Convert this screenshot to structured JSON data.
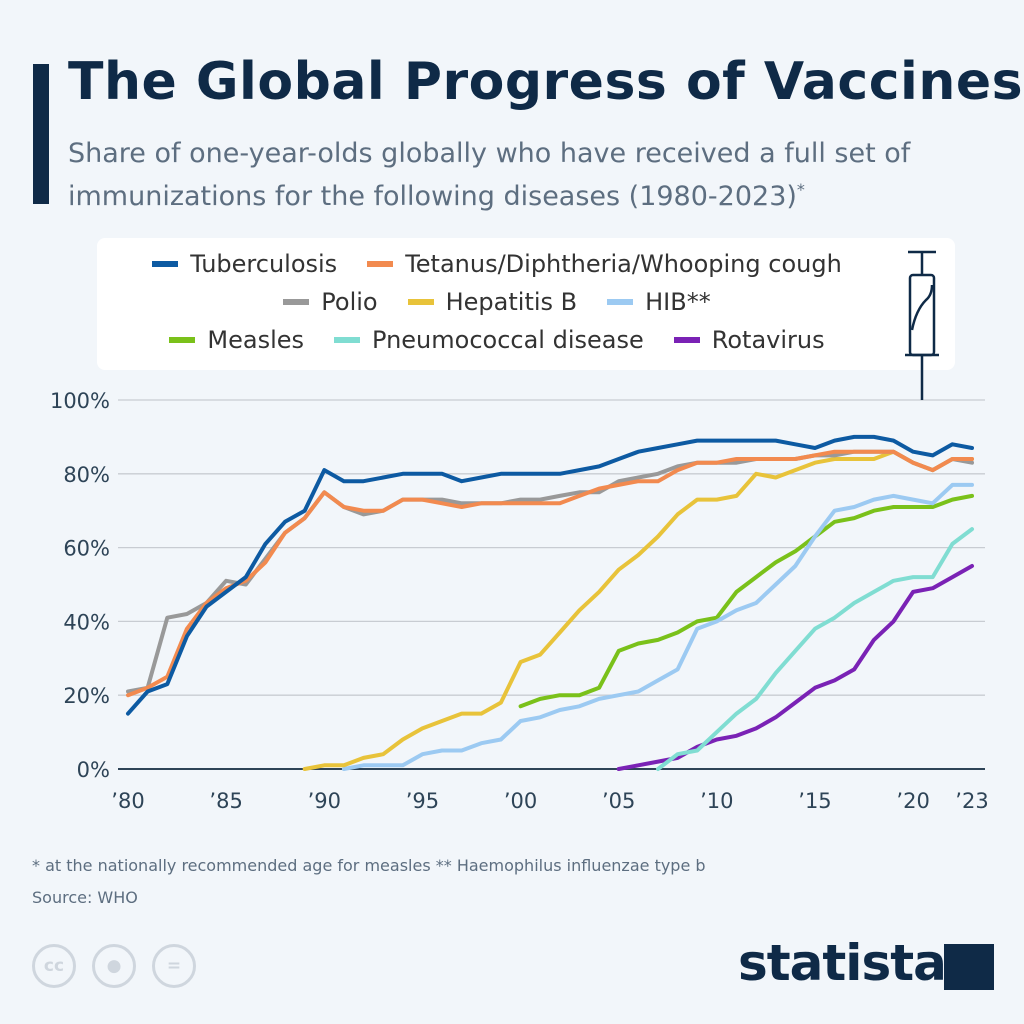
{
  "title": "The Global Progress of Vaccines",
  "subtitle": "Share of one-year-olds globally who have received a full set of immunizations for the following diseases (1980-2023)",
  "subtitle_mark": "*",
  "footnote": "* at the nationally recommended age for measles     ** Haemophilus influenzae type b",
  "source": "Source: WHO",
  "logo": "statista",
  "icons": [
    "syringe-icon",
    "cc-icon",
    "attribution-icon",
    "no-derivatives-icon",
    "statista-logo-icon"
  ],
  "chart_data": {
    "type": "line",
    "title": "The Global Progress of Vaccines",
    "xlabel": "",
    "ylabel": "",
    "xlim": [
      1980,
      2023
    ],
    "ylim": [
      0,
      100
    ],
    "grid": true,
    "legend": "top",
    "x_ticks": [
      1980,
      1985,
      1990,
      1995,
      2000,
      2005,
      2010,
      2015,
      2020,
      2023
    ],
    "x_tick_labels": [
      "’80",
      "’85",
      "’90",
      "’95",
      "’00",
      "’05",
      "’10",
      "’15",
      "’20",
      "’23"
    ],
    "y_ticks": [
      0,
      20,
      40,
      60,
      80,
      100
    ],
    "y_tick_labels": [
      "0%",
      "20%",
      "40%",
      "60%",
      "80%",
      "100%"
    ],
    "series": [
      {
        "name": "Tuberculosis",
        "color": "#0d5aa2",
        "start": 1980,
        "values": [
          15,
          21,
          23,
          36,
          44,
          48,
          52,
          61,
          67,
          70,
          81,
          78,
          78,
          79,
          80,
          80,
          80,
          78,
          79,
          80,
          80,
          80,
          80,
          81,
          82,
          84,
          86,
          87,
          88,
          89,
          89,
          89,
          89,
          89,
          88,
          87,
          89,
          90,
          90,
          89,
          86,
          85,
          88,
          87
        ]
      },
      {
        "name": "Tetanus/Diphtheria/Whooping cough",
        "color": "#f28a4f",
        "start": 1980,
        "values": [
          20,
          22,
          25,
          38,
          45,
          49,
          51,
          56,
          64,
          68,
          75,
          71,
          70,
          70,
          73,
          73,
          72,
          71,
          72,
          72,
          72,
          72,
          72,
          74,
          76,
          77,
          78,
          78,
          81,
          83,
          83,
          84,
          84,
          84,
          84,
          85,
          86,
          86,
          86,
          86,
          83,
          81,
          84,
          84
        ]
      },
      {
        "name": "Polio",
        "color": "#999999",
        "start": 1980,
        "values": [
          21,
          22,
          41,
          42,
          45,
          51,
          50,
          57,
          64,
          68,
          75,
          71,
          69,
          70,
          73,
          73,
          73,
          72,
          72,
          72,
          73,
          73,
          74,
          75,
          75,
          78,
          79,
          80,
          82,
          83,
          83,
          83,
          84,
          84,
          84,
          85,
          85,
          86,
          86,
          86,
          83,
          81,
          84,
          83
        ]
      },
      {
        "name": "Hepatitis B",
        "color": "#e8c33a",
        "start": 1989,
        "values": [
          0,
          1,
          1,
          3,
          4,
          8,
          11,
          13,
          15,
          15,
          18,
          29,
          31,
          37,
          43,
          48,
          54,
          58,
          63,
          69,
          73,
          73,
          74,
          80,
          79,
          81,
          83,
          84,
          84,
          84,
          86,
          83,
          81,
          84,
          84
        ]
      },
      {
        "name": "HIB**",
        "color": "#9ccaf2",
        "start": 1991,
        "values": [
          0,
          1,
          1,
          1,
          4,
          5,
          5,
          7,
          8,
          13,
          14,
          16,
          17,
          19,
          20,
          21,
          24,
          27,
          38,
          40,
          43,
          45,
          50,
          55,
          63,
          70,
          71,
          73,
          74,
          73,
          72,
          77,
          77
        ]
      },
      {
        "name": "Measles",
        "color": "#7ac11a",
        "start": 2000,
        "values": [
          17,
          19,
          20,
          20,
          22,
          32,
          34,
          35,
          37,
          40,
          41,
          48,
          52,
          56,
          59,
          63,
          67,
          68,
          70,
          71,
          71,
          71,
          73,
          74
        ]
      },
      {
        "name": "Pneumococcal disease",
        "color": "#80ddd2",
        "start": 2007,
        "values": [
          0,
          4,
          5,
          10,
          15,
          19,
          26,
          32,
          38,
          41,
          45,
          48,
          51,
          52,
          52,
          61,
          65
        ]
      },
      {
        "name": "Rotavirus",
        "color": "#7a22b5",
        "start": 2005,
        "values": [
          0,
          1,
          2,
          3,
          6,
          8,
          9,
          11,
          14,
          18,
          22,
          24,
          27,
          35,
          40,
          48,
          49,
          52,
          55
        ]
      }
    ]
  }
}
